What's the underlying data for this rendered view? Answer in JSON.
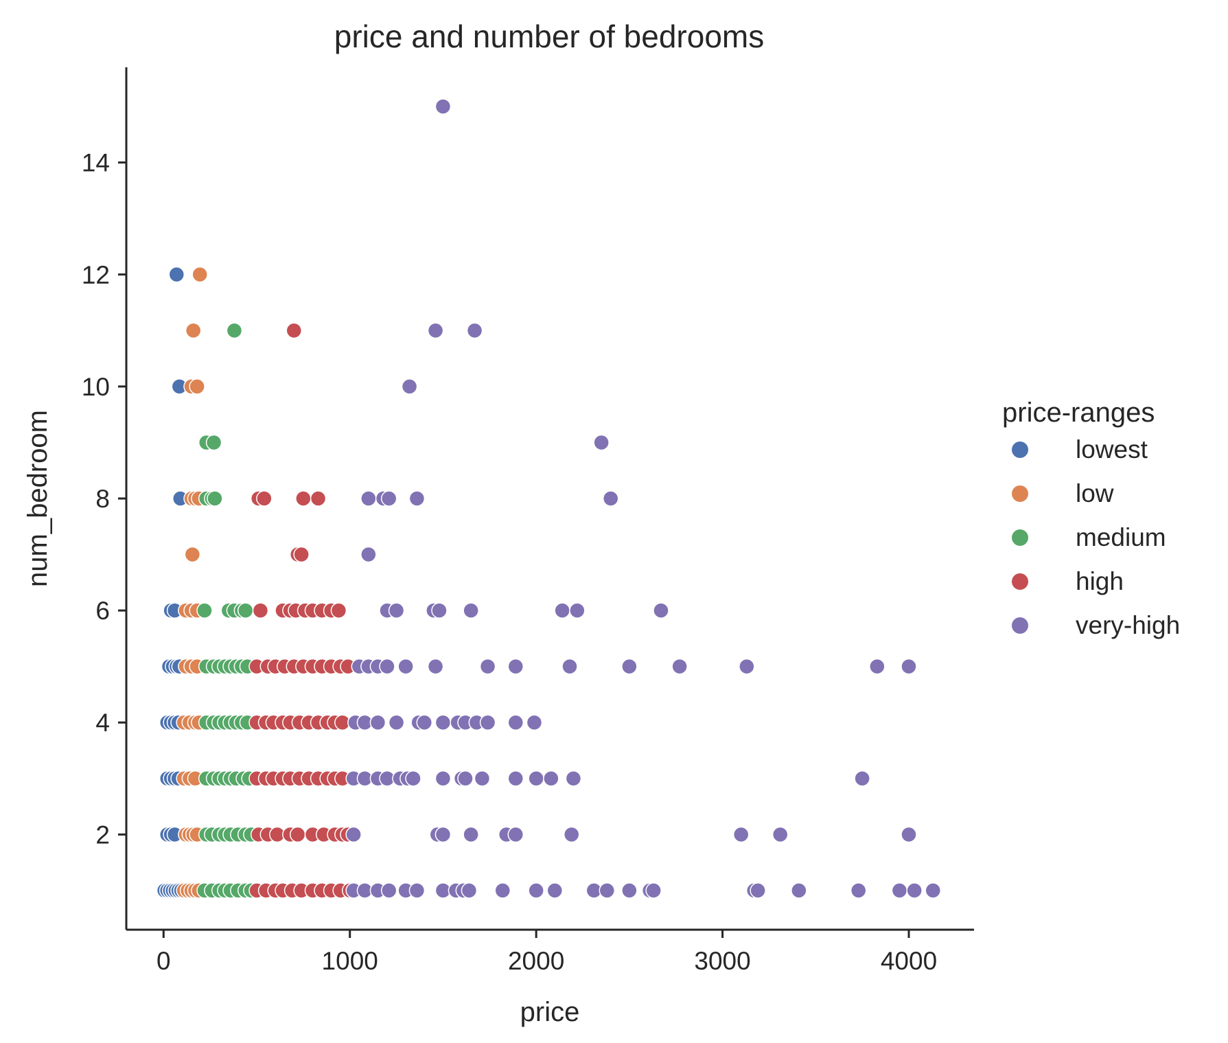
{
  "chart_data": {
    "type": "scatter",
    "title": "price and number of bedrooms",
    "xlabel": "price",
    "ylabel": "num_bedroom",
    "xlim": [
      -200,
      4350
    ],
    "ylim": [
      0.3,
      15.7
    ],
    "xticks": [
      0,
      1000,
      2000,
      3000,
      4000
    ],
    "yticks": [
      2,
      4,
      6,
      8,
      10,
      12,
      14
    ],
    "grid": false,
    "legend": {
      "title": "price-ranges",
      "placement": "right"
    },
    "series": [
      {
        "name": "lowest",
        "color": "#4c72b0",
        "points": [
          [
            70,
            12
          ],
          [
            85,
            10
          ],
          [
            90,
            8
          ],
          [
            40,
            6
          ],
          [
            60,
            6
          ],
          [
            30,
            5
          ],
          [
            50,
            5
          ],
          [
            70,
            5
          ],
          [
            85,
            5
          ],
          [
            20,
            4
          ],
          [
            40,
            4
          ],
          [
            60,
            4
          ],
          [
            80,
            4
          ],
          [
            20,
            3
          ],
          [
            40,
            3
          ],
          [
            60,
            3
          ],
          [
            80,
            3
          ],
          [
            20,
            2
          ],
          [
            40,
            2
          ],
          [
            60,
            2
          ],
          [
            5,
            1
          ],
          [
            20,
            1
          ],
          [
            35,
            1
          ],
          [
            50,
            1
          ],
          [
            65,
            1
          ],
          [
            80,
            1
          ],
          [
            95,
            1
          ]
        ]
      },
      {
        "name": "low",
        "color": "#dd8452",
        "points": [
          [
            195,
            12
          ],
          [
            160,
            11
          ],
          [
            150,
            10
          ],
          [
            180,
            10
          ],
          [
            150,
            8
          ],
          [
            170,
            8
          ],
          [
            190,
            8
          ],
          [
            155,
            7
          ],
          [
            120,
            6
          ],
          [
            150,
            6
          ],
          [
            180,
            6
          ],
          [
            120,
            5
          ],
          [
            150,
            5
          ],
          [
            180,
            5
          ],
          [
            110,
            4
          ],
          [
            140,
            4
          ],
          [
            170,
            4
          ],
          [
            190,
            4
          ],
          [
            110,
            3
          ],
          [
            140,
            3
          ],
          [
            170,
            3
          ],
          [
            120,
            2
          ],
          [
            140,
            2
          ],
          [
            160,
            2
          ],
          [
            180,
            2
          ],
          [
            110,
            1
          ],
          [
            130,
            1
          ],
          [
            150,
            1
          ],
          [
            170,
            1
          ],
          [
            190,
            1
          ]
        ]
      },
      {
        "name": "medium",
        "color": "#55a868",
        "points": [
          [
            380,
            11
          ],
          [
            230,
            9
          ],
          [
            270,
            9
          ],
          [
            230,
            8
          ],
          [
            260,
            8
          ],
          [
            275,
            8
          ],
          [
            220,
            6
          ],
          [
            350,
            6
          ],
          [
            380,
            6
          ],
          [
            420,
            6
          ],
          [
            440,
            6
          ],
          [
            230,
            5
          ],
          [
            270,
            5
          ],
          [
            300,
            5
          ],
          [
            330,
            5
          ],
          [
            360,
            5
          ],
          [
            390,
            5
          ],
          [
            420,
            5
          ],
          [
            450,
            5
          ],
          [
            230,
            4
          ],
          [
            270,
            4
          ],
          [
            300,
            4
          ],
          [
            330,
            4
          ],
          [
            360,
            4
          ],
          [
            390,
            4
          ],
          [
            420,
            4
          ],
          [
            450,
            4
          ],
          [
            230,
            3
          ],
          [
            270,
            3
          ],
          [
            300,
            3
          ],
          [
            330,
            3
          ],
          [
            360,
            3
          ],
          [
            390,
            3
          ],
          [
            430,
            3
          ],
          [
            460,
            3
          ],
          [
            230,
            2
          ],
          [
            260,
            2
          ],
          [
            300,
            2
          ],
          [
            330,
            2
          ],
          [
            360,
            2
          ],
          [
            400,
            2
          ],
          [
            440,
            2
          ],
          [
            470,
            2
          ],
          [
            220,
            1
          ],
          [
            260,
            1
          ],
          [
            300,
            1
          ],
          [
            330,
            1
          ],
          [
            360,
            1
          ],
          [
            400,
            1
          ],
          [
            440,
            1
          ],
          [
            470,
            1
          ]
        ]
      },
      {
        "name": "high",
        "color": "#c44e52",
        "points": [
          [
            700,
            11
          ],
          [
            510,
            8
          ],
          [
            540,
            8
          ],
          [
            750,
            8
          ],
          [
            830,
            8
          ],
          [
            720,
            7
          ],
          [
            740,
            7
          ],
          [
            520,
            6
          ],
          [
            640,
            6
          ],
          [
            680,
            6
          ],
          [
            710,
            6
          ],
          [
            760,
            6
          ],
          [
            800,
            6
          ],
          [
            850,
            6
          ],
          [
            900,
            6
          ],
          [
            940,
            6
          ],
          [
            500,
            5
          ],
          [
            560,
            5
          ],
          [
            600,
            5
          ],
          [
            650,
            5
          ],
          [
            700,
            5
          ],
          [
            750,
            5
          ],
          [
            800,
            5
          ],
          [
            850,
            5
          ],
          [
            900,
            5
          ],
          [
            950,
            5
          ],
          [
            990,
            5
          ],
          [
            500,
            4
          ],
          [
            550,
            4
          ],
          [
            590,
            4
          ],
          [
            640,
            4
          ],
          [
            680,
            4
          ],
          [
            730,
            4
          ],
          [
            780,
            4
          ],
          [
            830,
            4
          ],
          [
            880,
            4
          ],
          [
            920,
            4
          ],
          [
            960,
            4
          ],
          [
            500,
            3
          ],
          [
            550,
            3
          ],
          [
            590,
            3
          ],
          [
            640,
            3
          ],
          [
            680,
            3
          ],
          [
            730,
            3
          ],
          [
            780,
            3
          ],
          [
            830,
            3
          ],
          [
            880,
            3
          ],
          [
            920,
            3
          ],
          [
            960,
            3
          ],
          [
            510,
            2
          ],
          [
            560,
            2
          ],
          [
            610,
            2
          ],
          [
            680,
            2
          ],
          [
            720,
            2
          ],
          [
            800,
            2
          ],
          [
            860,
            2
          ],
          [
            920,
            2
          ],
          [
            960,
            2
          ],
          [
            990,
            2
          ],
          [
            500,
            1
          ],
          [
            550,
            1
          ],
          [
            600,
            1
          ],
          [
            640,
            1
          ],
          [
            690,
            1
          ],
          [
            740,
            1
          ],
          [
            800,
            1
          ],
          [
            850,
            1
          ],
          [
            900,
            1
          ],
          [
            950,
            1
          ],
          [
            1000,
            1
          ]
        ]
      },
      {
        "name": "very-high",
        "color": "#8172b3",
        "points": [
          [
            1500,
            15
          ],
          [
            1460,
            11
          ],
          [
            1670,
            11
          ],
          [
            1320,
            10
          ],
          [
            2350,
            9
          ],
          [
            1100,
            8
          ],
          [
            1180,
            8
          ],
          [
            1210,
            8
          ],
          [
            1360,
            8
          ],
          [
            2400,
            8
          ],
          [
            1100,
            7
          ],
          [
            1200,
            6
          ],
          [
            1250,
            6
          ],
          [
            1450,
            6
          ],
          [
            1480,
            6
          ],
          [
            1650,
            6
          ],
          [
            2140,
            6
          ],
          [
            2220,
            6
          ],
          [
            2670,
            6
          ],
          [
            1050,
            5
          ],
          [
            1100,
            5
          ],
          [
            1150,
            5
          ],
          [
            1200,
            5
          ],
          [
            1300,
            5
          ],
          [
            1460,
            5
          ],
          [
            1740,
            5
          ],
          [
            1890,
            5
          ],
          [
            2180,
            5
          ],
          [
            2500,
            5
          ],
          [
            2770,
            5
          ],
          [
            3130,
            5
          ],
          [
            3830,
            5
          ],
          [
            4000,
            5
          ],
          [
            1030,
            4
          ],
          [
            1080,
            4
          ],
          [
            1150,
            4
          ],
          [
            1250,
            4
          ],
          [
            1370,
            4
          ],
          [
            1400,
            4
          ],
          [
            1500,
            4
          ],
          [
            1580,
            4
          ],
          [
            1620,
            4
          ],
          [
            1680,
            4
          ],
          [
            1740,
            4
          ],
          [
            1890,
            4
          ],
          [
            1990,
            4
          ],
          [
            1020,
            3
          ],
          [
            1080,
            3
          ],
          [
            1150,
            3
          ],
          [
            1200,
            3
          ],
          [
            1270,
            3
          ],
          [
            1310,
            3
          ],
          [
            1340,
            3
          ],
          [
            1500,
            3
          ],
          [
            1600,
            3
          ],
          [
            1620,
            3
          ],
          [
            1710,
            3
          ],
          [
            1890,
            3
          ],
          [
            2000,
            3
          ],
          [
            2080,
            3
          ],
          [
            2200,
            3
          ],
          [
            3750,
            3
          ],
          [
            1020,
            2
          ],
          [
            1470,
            2
          ],
          [
            1500,
            2
          ],
          [
            1650,
            2
          ],
          [
            1840,
            2
          ],
          [
            1890,
            2
          ],
          [
            2190,
            2
          ],
          [
            3100,
            2
          ],
          [
            3310,
            2
          ],
          [
            4000,
            2
          ],
          [
            1020,
            1
          ],
          [
            1080,
            1
          ],
          [
            1150,
            1
          ],
          [
            1210,
            1
          ],
          [
            1300,
            1
          ],
          [
            1360,
            1
          ],
          [
            1500,
            1
          ],
          [
            1570,
            1
          ],
          [
            1610,
            1
          ],
          [
            1640,
            1
          ],
          [
            1820,
            1
          ],
          [
            2000,
            1
          ],
          [
            2100,
            1
          ],
          [
            2310,
            1
          ],
          [
            2380,
            1
          ],
          [
            2500,
            1
          ],
          [
            2610,
            1
          ],
          [
            2630,
            1
          ],
          [
            3170,
            1
          ],
          [
            3190,
            1
          ],
          [
            3410,
            1
          ],
          [
            3730,
            1
          ],
          [
            3950,
            1
          ],
          [
            4030,
            1
          ],
          [
            4130,
            1
          ]
        ]
      }
    ]
  }
}
